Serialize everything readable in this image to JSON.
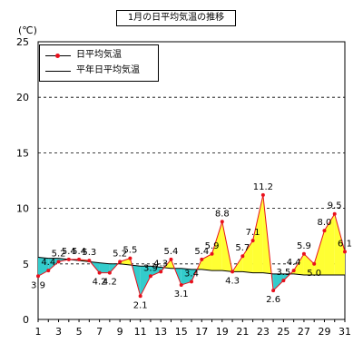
{
  "chart_data": {
    "type": "line",
    "title": "1月の日平均気温の推移",
    "unit": "(℃)",
    "x": [
      1,
      2,
      3,
      4,
      5,
      6,
      7,
      8,
      9,
      10,
      11,
      12,
      13,
      14,
      15,
      16,
      17,
      18,
      19,
      20,
      21,
      22,
      23,
      24,
      25,
      26,
      27,
      28,
      29,
      30,
      31
    ],
    "x_ticks": [
      1,
      3,
      5,
      7,
      9,
      11,
      13,
      15,
      17,
      19,
      21,
      23,
      25,
      27,
      29,
      31
    ],
    "y_ticks": [
      0,
      5,
      10,
      15,
      20,
      25
    ],
    "ylim": [
      0,
      25
    ],
    "xlim": [
      1,
      31
    ],
    "grid": "horizontal-dashed",
    "legend": "top-left",
    "series": [
      {
        "name": "日平均気温",
        "color": "#e8101c",
        "values": [
          3.9,
          4.4,
          5.2,
          5.4,
          5.4,
          5.3,
          4.2,
          4.2,
          5.2,
          5.5,
          2.1,
          3.9,
          4.3,
          5.4,
          3.1,
          3.4,
          5.4,
          5.9,
          8.8,
          4.3,
          5.7,
          7.1,
          11.2,
          2.6,
          3.5,
          4.4,
          5.9,
          5.0,
          8.0,
          9.5,
          6.1
        ]
      },
      {
        "name": "平年日平均気温",
        "color": "#000000",
        "values": [
          5.6,
          5.5,
          5.5,
          5.4,
          5.3,
          5.2,
          5.1,
          5.0,
          5.0,
          4.9,
          4.8,
          4.8,
          4.7,
          4.6,
          4.6,
          4.5,
          4.5,
          4.4,
          4.4,
          4.3,
          4.3,
          4.2,
          4.2,
          4.1,
          4.1,
          4.1,
          4.0,
          4.0,
          4.0,
          4.0,
          4.0
        ]
      }
    ],
    "fill_above_color": "#ffff33",
    "fill_below_color": "#33cccc"
  }
}
